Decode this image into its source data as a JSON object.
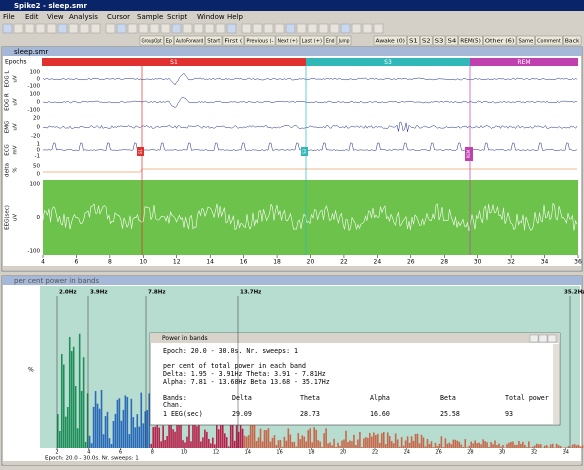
{
  "window": {
    "title": "Spike2 - sleep.smr",
    "menu": [
      "File",
      "Edit",
      "View",
      "Analysis",
      "Cursor",
      "Sample",
      "Script",
      "Window",
      "Help"
    ],
    "toolbar": [
      "GroupOpt",
      "Ep",
      "AutoForward",
      "Start",
      "First (",
      "Previous (-",
      "Next (+)",
      "Last (+)",
      "End",
      "Jump",
      "Awake (0)",
      "S1",
      "S2",
      "S3",
      "S4",
      "REM(5)",
      "Other (6)",
      "Same",
      "Comment",
      "Back"
    ]
  },
  "data_view": {
    "title": "sleep.smr",
    "epochs_label": "Epochs",
    "stages": [
      "S1",
      "S3",
      "REM"
    ],
    "channels": [
      {
        "label": "EOG L",
        "unit": "uV",
        "ticks": [
          "100",
          "0",
          "-100"
        ]
      },
      {
        "label": "EOG R",
        "unit": "uV",
        "ticks": [
          "100",
          "0",
          "-100"
        ]
      },
      {
        "label": "EMG",
        "unit": "uV",
        "ticks": [
          "20",
          "0",
          "-20"
        ]
      },
      {
        "label": "ECG",
        "unit": "mV",
        "ticks": [
          "1",
          "0",
          "-1"
        ]
      },
      {
        "label": "delta",
        "unit": "%",
        "ticks": [
          "50",
          "0"
        ]
      },
      {
        "label": "EEG(sec)",
        "unit": "uV",
        "ticks": [
          "100",
          "0",
          "-100"
        ]
      }
    ],
    "markers": [
      "S1",
      "S3",
      "REM"
    ],
    "x_ticks": [
      "4",
      "6",
      "8",
      "10",
      "12",
      "14",
      "16",
      "18",
      "20",
      "22",
      "24",
      "26",
      "28",
      "30",
      "32",
      "34",
      "36"
    ]
  },
  "power_view": {
    "title": "per cent power in bands",
    "y_label": "%",
    "band_labels": [
      "2.0Hz",
      "3.9Hz",
      "7.8Hz",
      "13.7Hz",
      "35.2Hz"
    ],
    "x_ticks": [
      "2",
      "4",
      "6",
      "8",
      "10",
      "12",
      "14",
      "16",
      "18",
      "20",
      "22",
      "24",
      "26",
      "28",
      "30",
      "32",
      "34"
    ],
    "status": "Epoch: 20.0 - 30.0s. Nr. sweeps: 1"
  },
  "dialog": {
    "title": "Power in bands",
    "lines": [
      "Epoch: 20.0 -  30.0s. Nr. sweeps: 1",
      "per cent of total power in each band",
      "Delta:  1.95 -  3.91Hz   Theta:  3.91 -  7.81Hz",
      "Alpha:  7.81 - 13.68Hz   Beta  13.68 - 35.17Hz"
    ],
    "table": {
      "header": [
        "Bands:",
        "Delta",
        "Theta",
        "Alpha",
        "Beta",
        "Total power"
      ],
      "chan_label": "Chan.",
      "rows": [
        [
          "1 EEG(sec)",
          "29.09",
          "28.73",
          "16.60",
          "25.58",
          "93"
        ]
      ]
    }
  }
}
